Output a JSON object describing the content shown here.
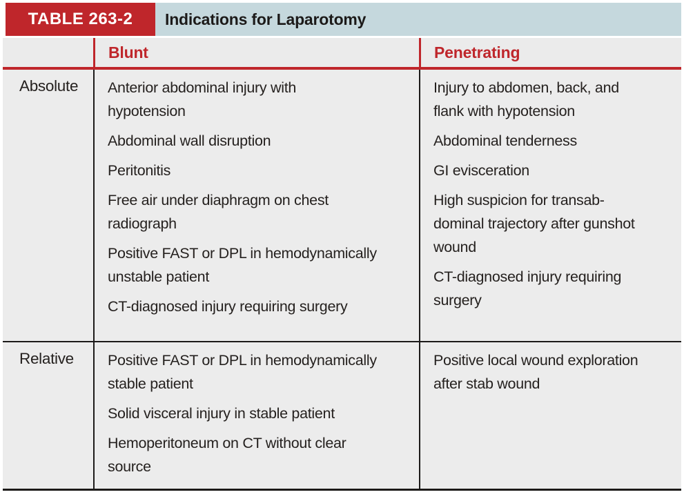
{
  "table": {
    "badge": "TABLE 263-2",
    "title": "Indications for Laparotomy",
    "columns": [
      "Blunt",
      "Penetrating"
    ],
    "rows": [
      {
        "label": "Absolute",
        "blunt": [
          "Anterior abdominal injury with\nhypotension",
          "Abdominal wall disruption",
          "Peritonitis",
          "Free air under diaphragm on chest\nradiograph",
          "Positive FAST or DPL in hemodynamically\nunstable patient",
          "CT-diagnosed injury requiring surgery"
        ],
        "penetrating": [
          "Injury to abdomen, back, and\nflank with hypotension",
          "Abdominal tenderness",
          "GI evisceration",
          "High suspicion for transab-\ndominal trajectory after gunshot\nwound",
          "CT-diagnosed injury requiring\nsurgery"
        ]
      },
      {
        "label": "Relative",
        "blunt": [
          "Positive FAST or DPL in hemodynamically\nstable patient",
          "Solid visceral injury in stable patient",
          "Hemoperitoneum on CT without clear\nsource"
        ],
        "penetrating": [
          "Positive local wound exploration\nafter stab wound"
        ]
      }
    ]
  },
  "colors": {
    "accent_red": "#bf262b",
    "band_blue": "#c5d8dd",
    "cell_bg": "#ececec",
    "head_bg": "#ebebeb",
    "ink": "#25211f",
    "rule_black": "#1c1a19"
  }
}
